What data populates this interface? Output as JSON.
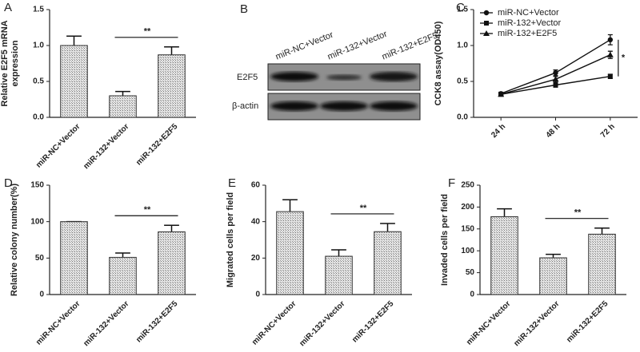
{
  "chart_data": [
    {
      "type": "bar",
      "panel_label": "A",
      "ylabel": [
        "Relative E2F5 mRNA",
        "expression"
      ],
      "categories": [
        "miR-NC+Vector",
        "miR-132+Vector",
        "miR-132+E2F5"
      ],
      "values": [
        1.0,
        0.3,
        0.87
      ],
      "errors": [
        0.13,
        0.06,
        0.11
      ],
      "ylim": [
        0,
        1.5
      ],
      "yticks": [
        {
          "value": 0,
          "label": "0.0"
        },
        0.5,
        {
          "value": 1,
          "label": "1.0"
        },
        1.5
      ],
      "annotation": "**",
      "color": "#cfcfcf"
    },
    {
      "type": "line",
      "panel_label": "C",
      "ylabel": "CCK8 assay(OD450)",
      "categories": [
        "24 h",
        "48 h",
        "72 h"
      ],
      "series": [
        {
          "name": "miR-NC+Vector",
          "color": "#111111",
          "marker": "circle",
          "values": [
            0.33,
            0.62,
            1.08
          ],
          "errors": [
            0.02,
            0.04,
            0.07
          ]
        },
        {
          "name": "miR-132+Vector",
          "color": "#111111",
          "marker": "square",
          "values": [
            0.32,
            0.45,
            0.57
          ],
          "errors": [
            0.02,
            0.03,
            0.03
          ]
        },
        {
          "name": "miR-132+E2F5",
          "color": "#111111",
          "marker": "triangle",
          "values": [
            0.32,
            0.53,
            0.87
          ],
          "errors": [
            0.02,
            0.04,
            0.05
          ]
        }
      ],
      "ylim": [
        0,
        1.5
      ],
      "yticks": [
        {
          "value": 0,
          "label": "0.0"
        },
        0.5,
        {
          "value": 1,
          "label": "1.0"
        },
        1.5
      ],
      "annotation": "*"
    },
    {
      "type": "bar",
      "panel_label": "D",
      "ylabel": "Relative colony number(%)",
      "categories": [
        "miR-NC+Vector",
        "miR-132+Vector",
        "miR-132+E2F5"
      ],
      "values": [
        100,
        51,
        86
      ],
      "errors": [
        0,
        6,
        9
      ],
      "ylim": [
        0,
        150
      ],
      "yticks": [
        0,
        50,
        100,
        150
      ],
      "annotation": "**",
      "color": "#cfcfcf"
    },
    {
      "type": "bar",
      "panel_label": "E",
      "ylabel": "Migrated cells per field",
      "categories": [
        "miR-NC+Vector",
        "miR-132+Vector",
        "miR-132+E2F5"
      ],
      "values": [
        45.5,
        21,
        34.5
      ],
      "errors": [
        6.5,
        3.5,
        4.5
      ],
      "ylim": [
        0,
        60
      ],
      "yticks": [
        0,
        20,
        40,
        60
      ],
      "annotation": "**",
      "color": "#cfcfcf"
    },
    {
      "type": "bar",
      "panel_label": "F",
      "ylabel": "Invaded cells per field",
      "categories": [
        "miR-NC+Vector",
        "miR-132+Vector",
        "miR-132+E2F5"
      ],
      "values": [
        178,
        84,
        138
      ],
      "errors": [
        18,
        8,
        14
      ],
      "ylim": [
        0,
        250
      ],
      "yticks": [
        0,
        50,
        100,
        150,
        200,
        250
      ],
      "annotation": "**",
      "color": "#cfcfcf"
    }
  ],
  "blot": {
    "panel_label": "B",
    "lanes": [
      "miR-NC+Vector",
      "miR-132+Vector",
      "miR-132+E2F5"
    ],
    "rows": [
      "E2F5",
      "β-actin"
    ]
  }
}
